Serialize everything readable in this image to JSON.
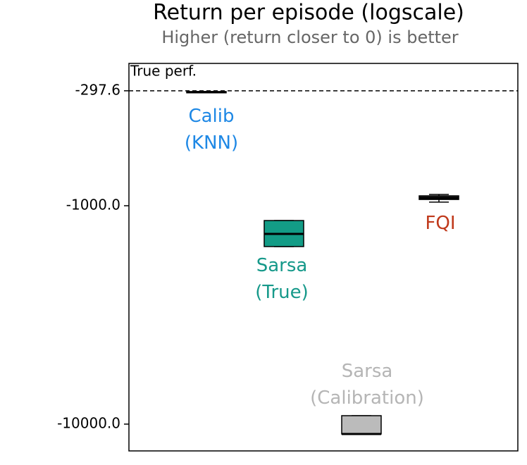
{
  "chart_data": {
    "type": "box",
    "title": "Return per episode (logscale)",
    "subtitle": "Higher (return closer to 0) is better",
    "log_scale": true,
    "ylim": [
      -13265,
      -223
    ],
    "yticks": [
      -297.6,
      {
        "value": -1000,
        "label": "-1000.0"
      },
      {
        "value": -10000,
        "label": "-10000.0"
      }
    ],
    "reference_line": {
      "value": -297.6,
      "label": "True perf."
    },
    "series": [
      {
        "label_lines": [
          "Calib",
          "(KNN)"
        ],
        "color": "#1e88e5",
        "fill": "#222222",
        "whislo": -304,
        "q1": -304,
        "median": -302,
        "q3": -300,
        "whishi": -300
      },
      {
        "label_lines": [
          "Sarsa",
          "(True)"
        ],
        "color": "#16998a",
        "fill": "#139c86",
        "whislo": -1538,
        "q1": -1538,
        "median": -1346,
        "q3": -1169,
        "whishi": -1169
      },
      {
        "label_lines": [
          "Sarsa",
          "(Calibration)"
        ],
        "color": "#b5b5b5",
        "fill": "#bbbbbb",
        "whislo": -11095,
        "q1": -11095,
        "median": -11095,
        "q3": -9149,
        "whishi": -9149
      },
      {
        "label_lines": [
          "FQI"
        ],
        "color": "#c0391b",
        "fill": "#333333",
        "whislo": -963,
        "q1": -936,
        "median": -921,
        "q3": -901,
        "whishi": -888
      }
    ]
  }
}
